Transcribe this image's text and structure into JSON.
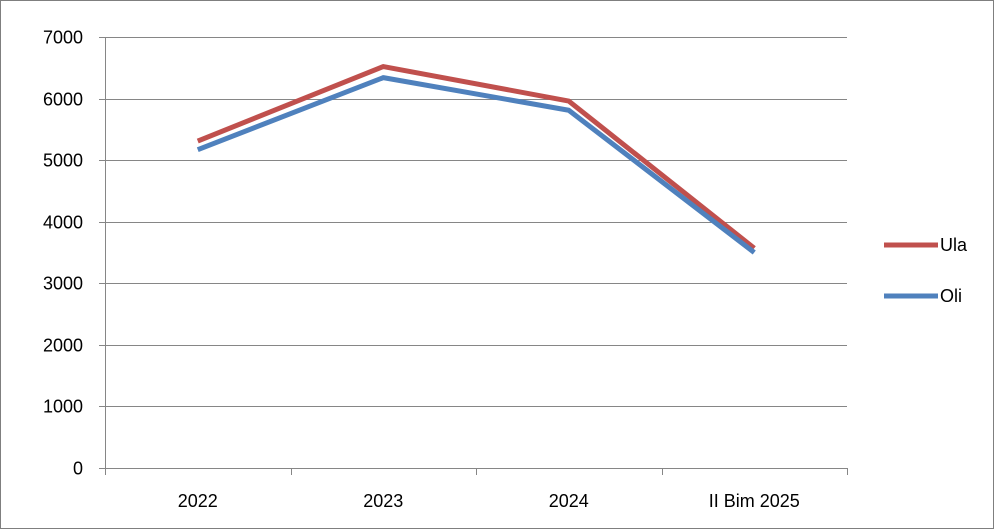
{
  "chart_data": {
    "type": "line",
    "title": "",
    "xlabel": "",
    "ylabel": "",
    "categories": [
      "2022",
      "2023",
      "2024",
      "II Bim 2025"
    ],
    "ylim": [
      0,
      7000
    ],
    "yticks": [
      "0",
      "1000",
      "2000",
      "3000",
      "4000",
      "5000",
      "6000",
      "7000"
    ],
    "grid": true,
    "legend_position": "right",
    "series": [
      {
        "name": "Ula",
        "color": "#c0504d",
        "values": [
          5310,
          6520,
          5960,
          3570
        ]
      },
      {
        "name": "Oli",
        "color": "#4f81bd",
        "values": [
          5170,
          6340,
          5810,
          3500
        ]
      }
    ]
  }
}
